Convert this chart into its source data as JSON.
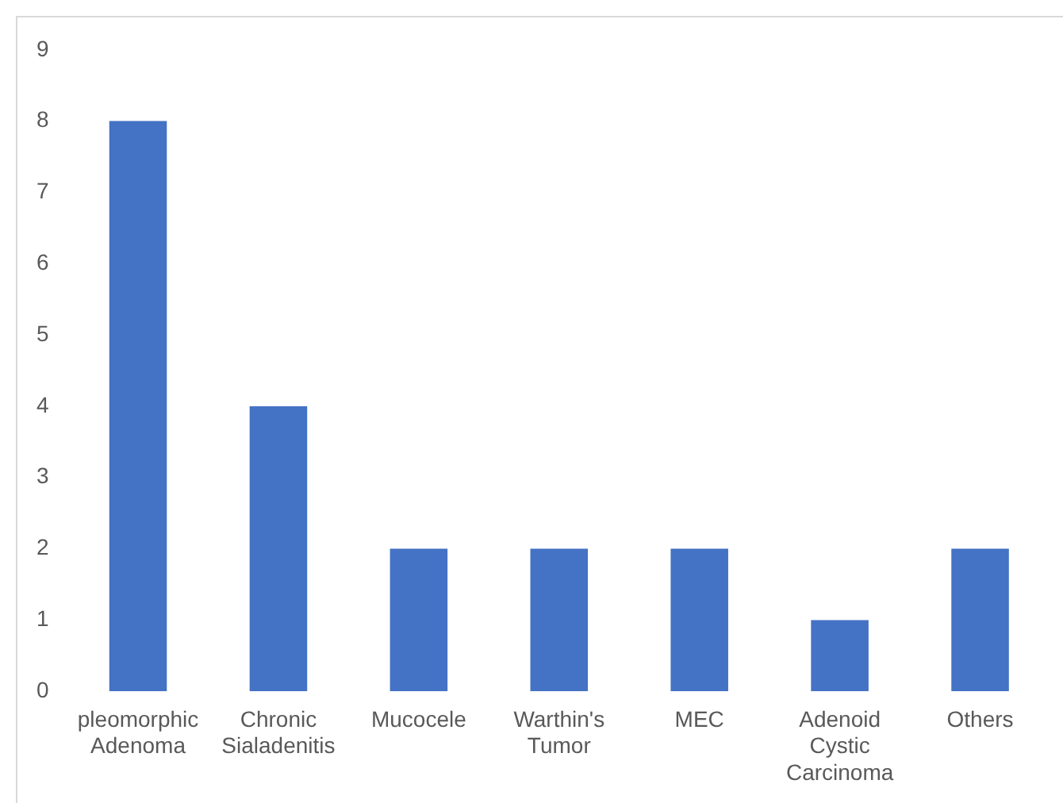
{
  "chart_data": {
    "type": "bar",
    "categories": [
      "pleomorphic Adenoma",
      "Chronic Sialadenitis",
      "Mucocele",
      "Warthin's Tumor",
      "MEC",
      "Adenoid Cystic Carcinoma",
      "Others"
    ],
    "values": [
      8,
      4,
      2,
      2,
      2,
      1,
      2
    ],
    "color": "#4472c4",
    "ylim": [
      0,
      9
    ],
    "yticks": [
      0,
      1,
      2,
      3,
      4,
      5,
      6,
      7,
      8,
      9
    ],
    "grid": false,
    "legend": false
  }
}
